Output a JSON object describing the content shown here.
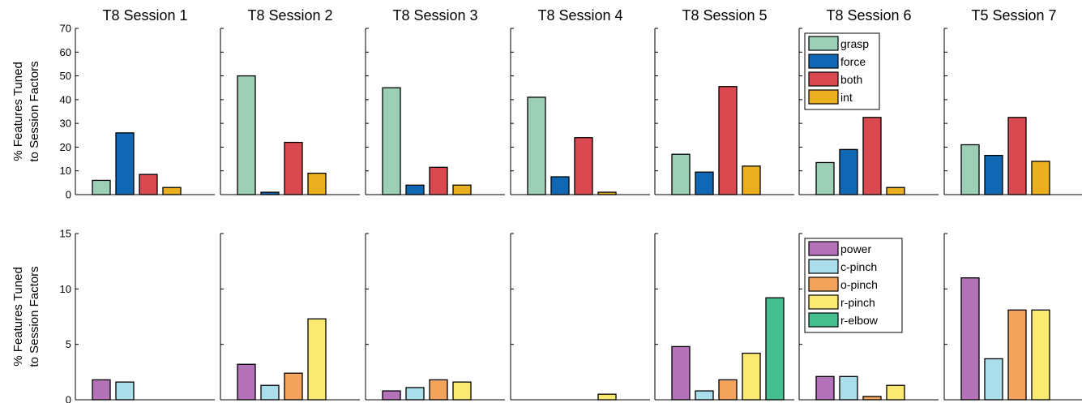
{
  "chart_data": {
    "type": "bar",
    "panel_titles": [
      "T8 Session 1",
      "T8 Session 2",
      "T8 Session 3",
      "T8 Session 4",
      "T8 Session 5",
      "T8 Session 6",
      "T5 Session 7"
    ],
    "ylabel_lines": [
      "% Features Tuned",
      "to Session Factors"
    ],
    "rows": [
      {
        "ylim": [
          0,
          70
        ],
        "yticks": [
          0,
          10,
          20,
          30,
          40,
          50,
          60,
          70
        ],
        "legend_position": "top-right, panel 6",
        "series": [
          {
            "name": "grasp",
            "color": "#9ccfb6"
          },
          {
            "name": "force",
            "color": "#1068b5"
          },
          {
            "name": "both",
            "color": "#da4950"
          },
          {
            "name": "int",
            "color": "#ebb020"
          }
        ],
        "values": [
          [
            6,
            26,
            8.5,
            3
          ],
          [
            50,
            1,
            22,
            9
          ],
          [
            45,
            4,
            11.5,
            4
          ],
          [
            41,
            7.5,
            24,
            1
          ],
          [
            17,
            9.5,
            45.5,
            12
          ],
          [
            13.5,
            19,
            32.5,
            3
          ],
          [
            21,
            16.5,
            32.5,
            14
          ]
        ]
      },
      {
        "ylim": [
          0,
          15
        ],
        "yticks": [
          0,
          5,
          10,
          15
        ],
        "legend_position": "top-right, panel 6",
        "series": [
          {
            "name": "power",
            "color": "#b472b8"
          },
          {
            "name": "c-pinch",
            "color": "#aadeea"
          },
          {
            "name": "o-pinch",
            "color": "#f3a35c"
          },
          {
            "name": "r-pinch",
            "color": "#faea72"
          },
          {
            "name": "r-elbow",
            "color": "#46bf90"
          }
        ],
        "values": [
          [
            1.8,
            1.6,
            0,
            0,
            0
          ],
          [
            3.2,
            1.3,
            2.4,
            7.3,
            0
          ],
          [
            0.8,
            1.1,
            1.8,
            1.6,
            0
          ],
          [
            0,
            0,
            0,
            0.5,
            0
          ],
          [
            4.8,
            0.8,
            1.8,
            4.2,
            9.2
          ],
          [
            2.1,
            2.1,
            0.3,
            1.3,
            0
          ],
          [
            11,
            3.7,
            8.1,
            8.1,
            0
          ]
        ]
      }
    ]
  }
}
